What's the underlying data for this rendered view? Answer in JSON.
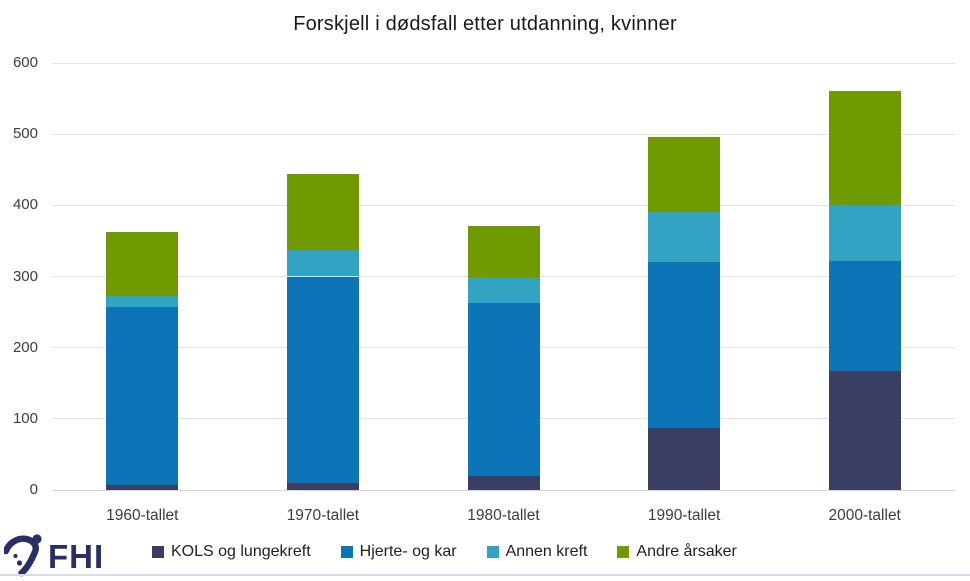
{
  "title": "Forskjell i dødsfall etter utdanning, kvinner",
  "logo": {
    "text": "FHI",
    "color": "#272f66"
  },
  "colors": {
    "kols": "#3b3e63",
    "hjerte": "#0e74b8",
    "annen_kreft": "#32a3c3",
    "andre": "#6f9a00",
    "gridline": "#e2e2e2",
    "bottom_rule": "#d8dae6"
  },
  "chart_data": {
    "type": "bar",
    "stacked": true,
    "title": "Forskjell i dødsfall etter utdanning, kvinner",
    "categories": [
      "1960-tallet",
      "1970-tallet",
      "1980-tallet",
      "1990-tallet",
      "2000-tallet"
    ],
    "series": [
      {
        "name": "KOLS og lungekreft",
        "color": "#3b3e63",
        "values": [
          7,
          10,
          20,
          87,
          167
        ]
      },
      {
        "name": "Hjerte- og kar",
        "color": "#0e74b8",
        "values": [
          250,
          290,
          243,
          233,
          155
        ]
      },
      {
        "name": "Annen kreft",
        "color": "#32a3c3",
        "values": [
          15,
          37,
          35,
          71,
          79
        ]
      },
      {
        "name": "Andre årsaker",
        "color": "#6f9a00",
        "values": [
          90,
          107,
          73,
          105,
          160
        ]
      }
    ],
    "stack_totals": [
      362,
      444,
      371,
      496,
      561
    ],
    "xlabel": "",
    "ylabel": "",
    "ylim": [
      0,
      600
    ],
    "yticks": [
      0,
      100,
      200,
      300,
      400,
      500,
      600
    ],
    "grid": true,
    "legend_position": "bottom"
  }
}
